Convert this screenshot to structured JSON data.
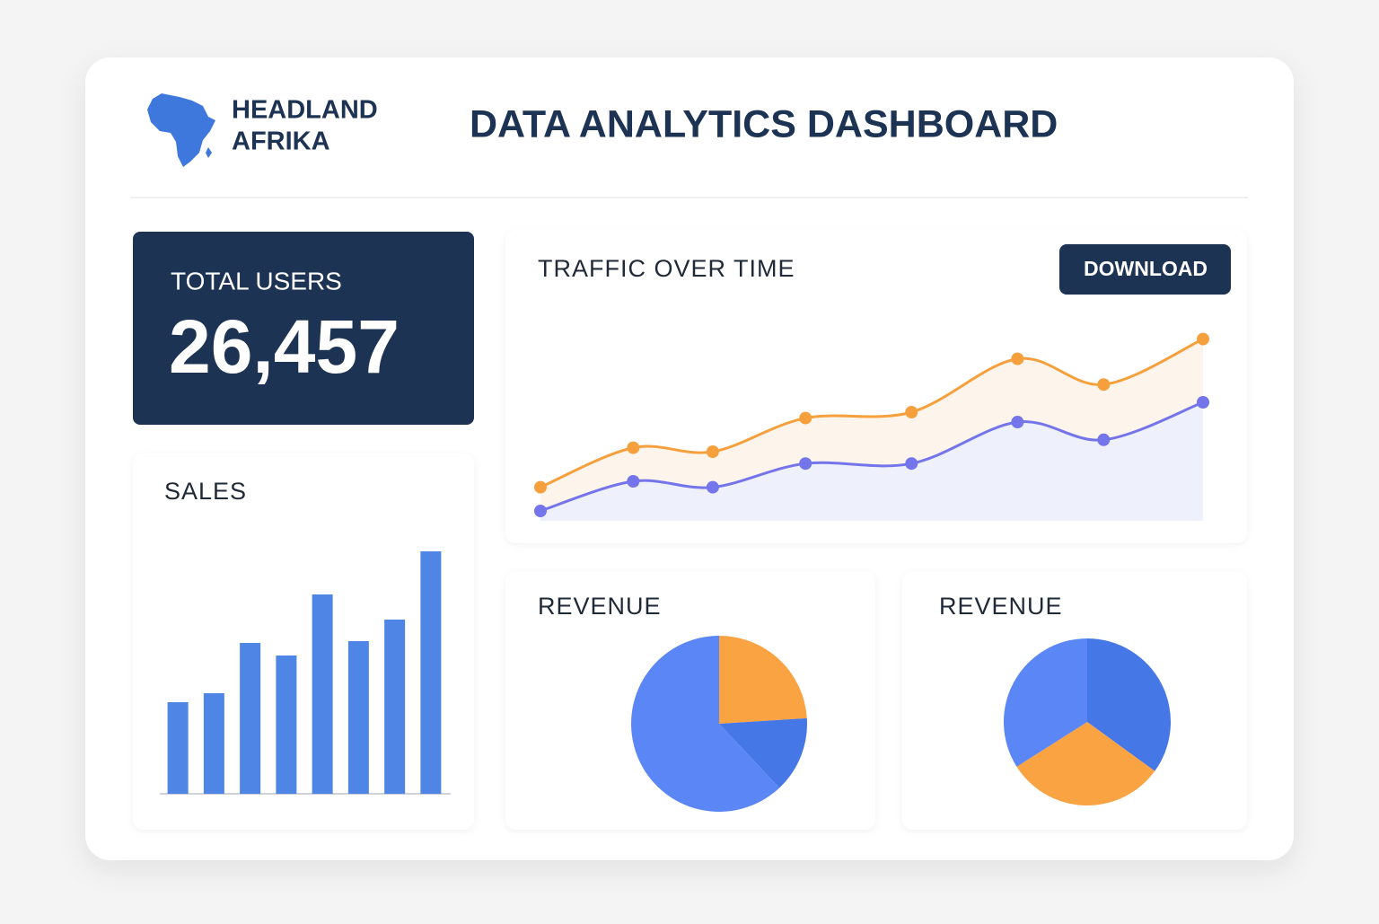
{
  "header": {
    "brand_line1": "HEADLAND",
    "brand_line2": "AFRIKA",
    "title": "DATA ANALYTICS DASHBOARD"
  },
  "kpi": {
    "label": "TOTAL USERS",
    "value": "26,457"
  },
  "traffic_button": "DOWNLOAD",
  "chart_data": [
    {
      "type": "line",
      "title": "TRAFFIC OVER TIME",
      "x": [
        0,
        14,
        26,
        40,
        56,
        72,
        85,
        100
      ],
      "xlim": [
        0,
        100
      ],
      "ylim": [
        0,
        100
      ],
      "area": true,
      "series": [
        {
          "color": "#f5a03c",
          "fill": "#fdf5ec",
          "values": [
            17,
            37,
            35,
            52,
            55,
            82,
            69,
            92
          ]
        },
        {
          "color": "#7475ea",
          "fill": "#eef0fc",
          "values": [
            5,
            20,
            17,
            29,
            29,
            50,
            41,
            60
          ]
        }
      ]
    },
    {
      "type": "bar",
      "title": "SALES",
      "color": "#4f86e6",
      "categories": [
        null,
        null,
        null,
        null,
        null,
        null,
        null,
        null
      ],
      "values": [
        102,
        112,
        168,
        154,
        222,
        170,
        194,
        270
      ],
      "ylim": [
        0,
        300
      ]
    },
    {
      "type": "pie",
      "title": "REVENUE",
      "values": [
        24,
        14,
        62
      ],
      "colors": [
        "#f9a343",
        "#4677e6",
        "#5b86f5"
      ]
    },
    {
      "type": "pie",
      "title": "REVENUE",
      "values": [
        35,
        31,
        34
      ],
      "colors": [
        "#4677e6",
        "#f9a343",
        "#5b86f5"
      ]
    }
  ]
}
